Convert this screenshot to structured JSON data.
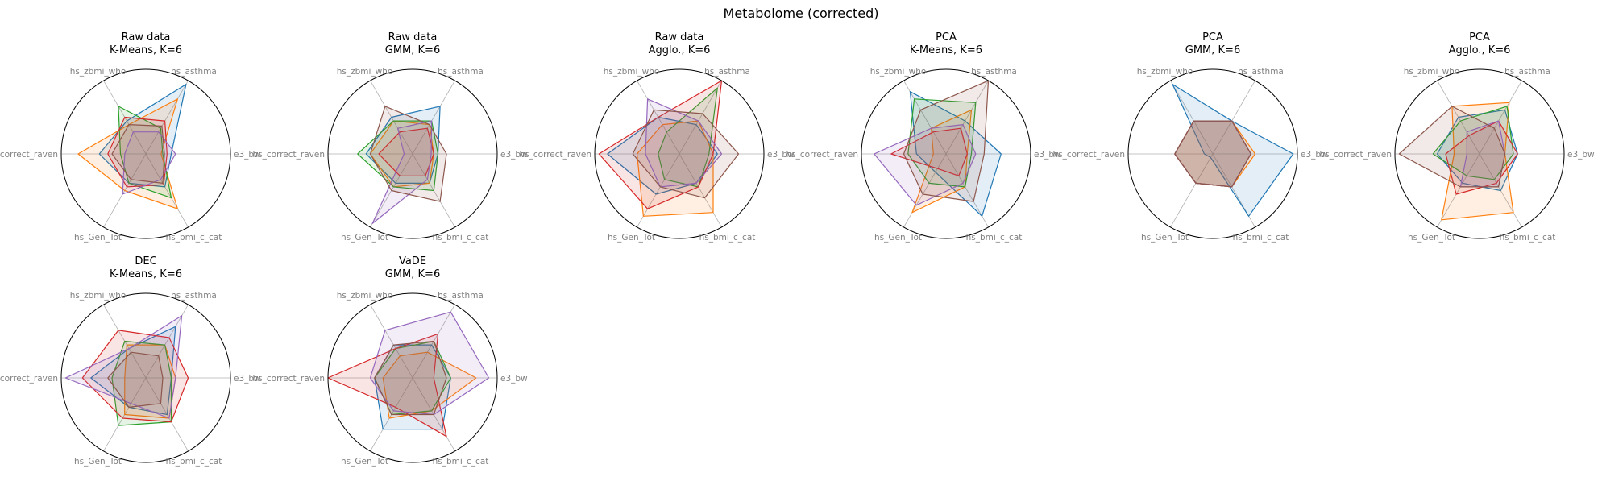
{
  "figure": {
    "suptitle": "Metabolome (corrected)"
  },
  "chart_data": {
    "type": "radar",
    "axes": [
      "e3_bw",
      "hs_asthma",
      "hs_zbmi_who",
      "hs_correct_raven",
      "hs_Gen_Tot",
      "hs_bmi_c_cat"
    ],
    "rlim": [
      0,
      1
    ],
    "grid": "spokes",
    "series_colors": [
      "#1f77b4",
      "#ff7f0e",
      "#2ca02c",
      "#d62728",
      "#9467bd",
      "#8c564b"
    ],
    "panels": [
      {
        "title": "Raw data",
        "subtitle": "K-Means, K=6",
        "series": [
          {
            "values": [
              0.3,
              0.95,
              0.45,
              0.55,
              0.4,
              0.45
            ]
          },
          {
            "values": [
              0.18,
              0.75,
              0.4,
              0.8,
              0.5,
              0.75
            ]
          },
          {
            "values": [
              0.2,
              0.35,
              0.65,
              0.3,
              0.4,
              0.6
            ]
          },
          {
            "values": [
              0.25,
              0.45,
              0.5,
              0.45,
              0.45,
              0.42
            ]
          },
          {
            "values": [
              0.35,
              0.3,
              0.3,
              0.25,
              0.55,
              0.35
            ]
          },
          {
            "values": [
              0.22,
              0.38,
              0.4,
              0.4,
              0.35,
              0.4
            ]
          }
        ]
      },
      {
        "title": "Raw data",
        "subtitle": "GMM, K=6",
        "series": [
          {
            "values": [
              0.3,
              0.65,
              0.5,
              0.55,
              0.4,
              0.4
            ]
          },
          {
            "values": [
              0.25,
              0.4,
              0.45,
              0.5,
              0.45,
              0.4
            ]
          },
          {
            "values": [
              0.3,
              0.45,
              0.45,
              0.65,
              0.45,
              0.5
            ]
          },
          {
            "values": [
              0.25,
              0.35,
              0.3,
              0.4,
              0.3,
              0.3
            ]
          },
          {
            "values": [
              0.22,
              0.45,
              0.35,
              0.1,
              0.95,
              0.35
            ]
          },
          {
            "values": [
              0.4,
              0.4,
              0.65,
              0.5,
              0.5,
              0.65
            ]
          }
        ]
      },
      {
        "title": "Raw data",
        "subtitle": "Agglo., K=6",
        "series": [
          {
            "values": [
              0.45,
              0.4,
              0.5,
              0.85,
              0.55,
              0.4
            ]
          },
          {
            "values": [
              0.4,
              0.45,
              0.4,
              0.5,
              0.85,
              0.8
            ]
          },
          {
            "values": [
              0.35,
              0.9,
              0.3,
              0.25,
              0.35,
              0.45
            ]
          },
          {
            "values": [
              0.4,
              1.0,
              0.5,
              0.95,
              0.75,
              0.45
            ]
          },
          {
            "values": [
              0.5,
              0.45,
              0.75,
              0.4,
              0.45,
              0.4
            ]
          },
          {
            "values": [
              0.7,
              0.55,
              0.6,
              0.55,
              0.45,
              0.6
            ]
          }
        ]
      },
      {
        "title": "PCA",
        "subtitle": "K-Means, K=6",
        "series": [
          {
            "values": [
              0.65,
              0.45,
              0.85,
              0.35,
              0.25,
              0.85
            ]
          },
          {
            "values": [
              0.25,
              0.6,
              0.35,
              0.15,
              0.8,
              0.45
            ]
          },
          {
            "values": [
              0.3,
              0.7,
              0.75,
              0.45,
              0.4,
              0.45
            ]
          },
          {
            "values": [
              0.25,
              0.35,
              0.3,
              0.65,
              0.2,
              0.3
            ]
          },
          {
            "values": [
              0.35,
              0.4,
              0.35,
              0.85,
              0.7,
              0.4
            ]
          },
          {
            "values": [
              0.45,
              1.0,
              0.6,
              0.5,
              0.55,
              0.65
            ]
          }
        ]
      },
      {
        "title": "PCA",
        "subtitle": "GMM, K=6",
        "series": [
          {
            "values": [
              0.95,
              0.45,
              0.95,
              0.1,
              0.05,
              0.85
            ]
          },
          {
            "values": [
              0.5,
              0.45,
              0.45,
              0.45,
              0.4,
              0.45
            ]
          },
          {
            "values": [
              0.45,
              0.45,
              0.45,
              0.45,
              0.4,
              0.45
            ]
          },
          {
            "values": [
              0.45,
              0.45,
              0.45,
              0.45,
              0.4,
              0.45
            ]
          },
          {
            "values": [
              0.45,
              0.45,
              0.45,
              0.45,
              0.4,
              0.45
            ]
          },
          {
            "values": [
              0.45,
              0.45,
              0.45,
              0.45,
              0.4,
              0.45
            ]
          }
        ]
      },
      {
        "title": "PCA",
        "subtitle": "Agglo., K=6",
        "series": [
          {
            "values": [
              0.45,
              0.6,
              0.5,
              0.5,
              0.4,
              0.5
            ]
          },
          {
            "values": [
              0.3,
              0.7,
              0.65,
              0.3,
              0.9,
              0.8
            ]
          },
          {
            "values": [
              0.4,
              0.65,
              0.45,
              0.55,
              0.3,
              0.35
            ]
          },
          {
            "values": [
              0.45,
              0.45,
              0.25,
              0.4,
              0.55,
              0.4
            ]
          },
          {
            "values": [
              0.3,
              0.45,
              0.3,
              0.15,
              0.45,
              0.45
            ]
          },
          {
            "values": [
              0.3,
              0.35,
              0.65,
              0.95,
              0.45,
              0.45
            ]
          }
        ]
      },
      {
        "title": "DEC",
        "subtitle": "K-Means, K=6",
        "series": [
          {
            "values": [
              0.3,
              0.7,
              0.4,
              0.65,
              0.4,
              0.5
            ]
          },
          {
            "values": [
              0.35,
              0.45,
              0.45,
              0.25,
              0.5,
              0.55
            ]
          },
          {
            "values": [
              0.3,
              0.45,
              0.5,
              0.4,
              0.65,
              0.6
            ]
          },
          {
            "values": [
              0.5,
              0.55,
              0.65,
              0.75,
              0.55,
              0.6
            ]
          },
          {
            "values": [
              0.35,
              0.85,
              0.4,
              0.95,
              0.35,
              0.55
            ]
          },
          {
            "values": [
              0.2,
              0.3,
              0.35,
              0.45,
              0.4,
              0.35
            ]
          }
        ]
      },
      {
        "title": "VaDE",
        "subtitle": "GMM, K=6",
        "series": [
          {
            "values": [
              0.45,
              0.45,
              0.45,
              0.45,
              0.7,
              0.7
            ]
          },
          {
            "values": [
              0.75,
              0.35,
              0.3,
              0.35,
              0.55,
              0.45
            ]
          },
          {
            "values": [
              0.45,
              0.5,
              0.4,
              0.45,
              0.5,
              0.45
            ]
          },
          {
            "values": [
              0.25,
              0.6,
              0.4,
              1.0,
              0.4,
              0.8
            ]
          },
          {
            "values": [
              0.9,
              0.9,
              0.65,
              0.5,
              0.45,
              0.5
            ]
          },
          {
            "values": [
              0.4,
              0.5,
              0.45,
              0.45,
              0.5,
              0.5
            ]
          }
        ]
      }
    ]
  }
}
